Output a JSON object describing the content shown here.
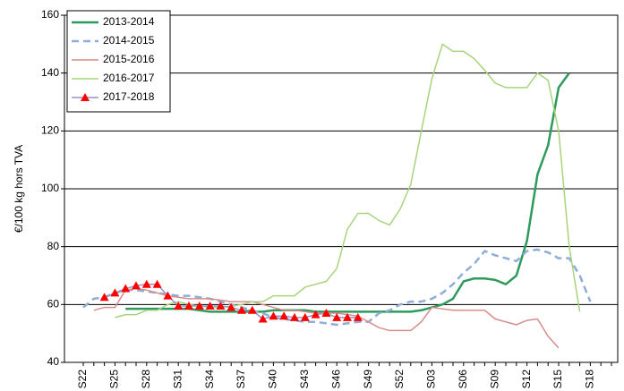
{
  "chart_data": {
    "type": "line",
    "y_label": "€/100 kg hors TVA",
    "categories": [
      "S22",
      null,
      null,
      "S25",
      null,
      null,
      "S28",
      null,
      null,
      "S31",
      null,
      null,
      "S34",
      null,
      null,
      "S37",
      null,
      null,
      "S40",
      null,
      null,
      "S43",
      null,
      null,
      "S46",
      null,
      null,
      "S49",
      null,
      null,
      "S52",
      null,
      null,
      "S03",
      null,
      null,
      "S06",
      null,
      null,
      "S09",
      null,
      null,
      "S12",
      null,
      null,
      "S15",
      null,
      null,
      "S18",
      null,
      null
    ],
    "ylim": [
      40,
      160
    ],
    "yticks": [
      40,
      60,
      80,
      100,
      120,
      140,
      160
    ],
    "grid": true,
    "legend": "top-left",
    "series": [
      {
        "name": "2013-2014",
        "color": "#2e9a5c",
        "width": 2.5,
        "values": [
          null,
          null,
          null,
          null,
          58.5,
          58.5,
          58.5,
          58.5,
          58.5,
          58.5,
          58.5,
          58,
          57.5,
          57.5,
          57.5,
          57.5,
          57.5,
          57.5,
          58,
          58,
          58,
          58,
          57.5,
          57.5,
          57.5,
          57.5,
          57.5,
          57.5,
          57.5,
          57.5,
          57.5,
          57.5,
          58,
          59,
          60,
          62,
          68,
          69,
          69,
          68.5,
          67,
          70,
          82,
          105,
          115,
          135,
          140,
          null,
          null,
          null,
          null
        ]
      },
      {
        "name": "2014-2015",
        "color": "#8eaed8",
        "width": 2.5,
        "dash": "8 5",
        "values": [
          59,
          62,
          62.5,
          64,
          65,
          65,
          64.5,
          64,
          63.5,
          63,
          63,
          62.5,
          62,
          61,
          60,
          59,
          58,
          57,
          55.5,
          55,
          54.5,
          54,
          54,
          53.5,
          53,
          53.5,
          54,
          54,
          57,
          58,
          60,
          61,
          61,
          62,
          64,
          67,
          71,
          74,
          78.5,
          77,
          76,
          75,
          78.5,
          79,
          78,
          76,
          76,
          70,
          61,
          null,
          null
        ]
      },
      {
        "name": "2015-2016",
        "color": "#d98c8c",
        "width": 1.5,
        "values": [
          null,
          58,
          59,
          59,
          65,
          65.5,
          65,
          64,
          63,
          62.5,
          62,
          62,
          62,
          61.5,
          61,
          61,
          61,
          60,
          59,
          58,
          58,
          57.5,
          57,
          57,
          57,
          56.5,
          56,
          54,
          52,
          51,
          51,
          51,
          54,
          59,
          58.5,
          58,
          58,
          58,
          58,
          55,
          54,
          53,
          54.5,
          55,
          49,
          45,
          null,
          null,
          null,
          null,
          null
        ]
      },
      {
        "name": "2016-2017",
        "color": "#a8d37c",
        "width": 1.5,
        "values": [
          null,
          null,
          null,
          55.5,
          56.5,
          56.5,
          58,
          58,
          60,
          61,
          60,
          59.5,
          59,
          59,
          59.5,
          60,
          61,
          61,
          63,
          63,
          63,
          66,
          67,
          68,
          72.5,
          86,
          91.5,
          91.5,
          89,
          87.5,
          93,
          101.5,
          120,
          138,
          150,
          147.5,
          147.5,
          145,
          141,
          136.5,
          135,
          135,
          135,
          140,
          137.5,
          120,
          80,
          57.5,
          null,
          null,
          null
        ]
      },
      {
        "name": "2017-2018",
        "color": "#9a90c6",
        "marker": "triangle",
        "marker_color": "#ff0000",
        "width": 1.5,
        "values": [
          null,
          null,
          62.5,
          64,
          65.5,
          66.5,
          67,
          67,
          63,
          59.5,
          59.5,
          59.5,
          59.5,
          59.5,
          59,
          58,
          58,
          55,
          56,
          56,
          55.5,
          55.5,
          56.5,
          57,
          55.5,
          55.5,
          55.5,
          null,
          null,
          null,
          null,
          null,
          null,
          null,
          null,
          null,
          null,
          null,
          null,
          null,
          null,
          null,
          null,
          null,
          null,
          null,
          null,
          null,
          null,
          null,
          null
        ]
      }
    ]
  }
}
